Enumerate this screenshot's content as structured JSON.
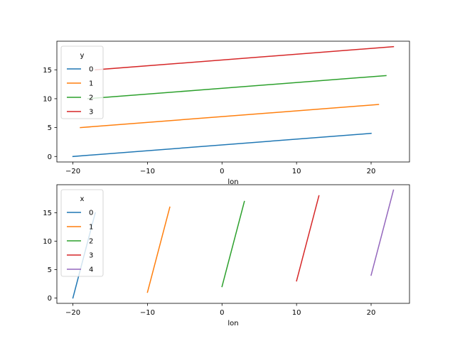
{
  "chart_data": [
    {
      "type": "line",
      "xlabel": "lon",
      "ylabel": "",
      "xlim": [
        -22.15,
        25.15
      ],
      "ylim": [
        -0.95,
        19.95
      ],
      "xticks": [
        -20,
        -10,
        0,
        10,
        20
      ],
      "yticks": [
        0,
        5,
        10,
        15
      ],
      "legend": {
        "title": "y",
        "placement": "top-left"
      },
      "series": [
        {
          "name": "0",
          "color": "#1f77b4",
          "x": [
            -20,
            20
          ],
          "y": [
            0,
            4
          ]
        },
        {
          "name": "1",
          "color": "#ff7f0e",
          "x": [
            -19,
            21
          ],
          "y": [
            5,
            9
          ]
        },
        {
          "name": "2",
          "color": "#2ca02c",
          "x": [
            -18,
            22
          ],
          "y": [
            10,
            14
          ]
        },
        {
          "name": "3",
          "color": "#d62728",
          "x": [
            -17,
            23
          ],
          "y": [
            15,
            19
          ]
        }
      ]
    },
    {
      "type": "line",
      "xlabel": "lon",
      "ylabel": "",
      "xlim": [
        -22.15,
        25.15
      ],
      "ylim": [
        -0.95,
        19.95
      ],
      "xticks": [
        -20,
        -10,
        0,
        10,
        20
      ],
      "yticks": [
        0,
        5,
        10,
        15
      ],
      "legend": {
        "title": "x",
        "placement": "top-left"
      },
      "series": [
        {
          "name": "0",
          "color": "#1f77b4",
          "x": [
            -20,
            -17
          ],
          "y": [
            0,
            15
          ]
        },
        {
          "name": "1",
          "color": "#ff7f0e",
          "x": [
            -10,
            -7
          ],
          "y": [
            1,
            16
          ]
        },
        {
          "name": "2",
          "color": "#2ca02c",
          "x": [
            0,
            3
          ],
          "y": [
            2,
            17
          ]
        },
        {
          "name": "3",
          "color": "#d62728",
          "x": [
            10,
            13
          ],
          "y": [
            3,
            18
          ]
        },
        {
          "name": "4",
          "color": "#9467bd",
          "x": [
            20,
            23
          ],
          "y": [
            4,
            19
          ]
        }
      ]
    }
  ]
}
